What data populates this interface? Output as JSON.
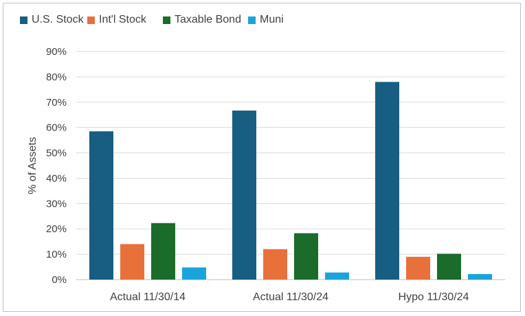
{
  "chart_data": {
    "type": "bar",
    "categories": [
      "Actual 11/30/14",
      "Actual 11/30/24",
      "Hypo 11/30/24"
    ],
    "series": [
      {
        "name": "U.S. Stock",
        "color": "#175e82",
        "values": [
          58.5,
          66.7,
          78.0
        ]
      },
      {
        "name": "Int'l Stock",
        "color": "#e8703a",
        "values": [
          14.0,
          12.0,
          9.0
        ]
      },
      {
        "name": "Taxable Bond",
        "color": "#1b6b2b",
        "values": [
          22.3,
          18.3,
          10.2
        ]
      },
      {
        "name": "Muni",
        "color": "#1aa4dd",
        "values": [
          4.8,
          2.8,
          2.2
        ]
      }
    ],
    "ylabel": "% of Assets",
    "ylim": [
      0,
      90
    ],
    "yticks": [
      0,
      10,
      20,
      30,
      40,
      50,
      60,
      70,
      80,
      90
    ],
    "ytick_labels": [
      "0%",
      "10%",
      "20%",
      "30%",
      "40%",
      "50%",
      "60%",
      "70%",
      "80%",
      "90%"
    ],
    "grid": true,
    "legend_position": "top-left"
  }
}
